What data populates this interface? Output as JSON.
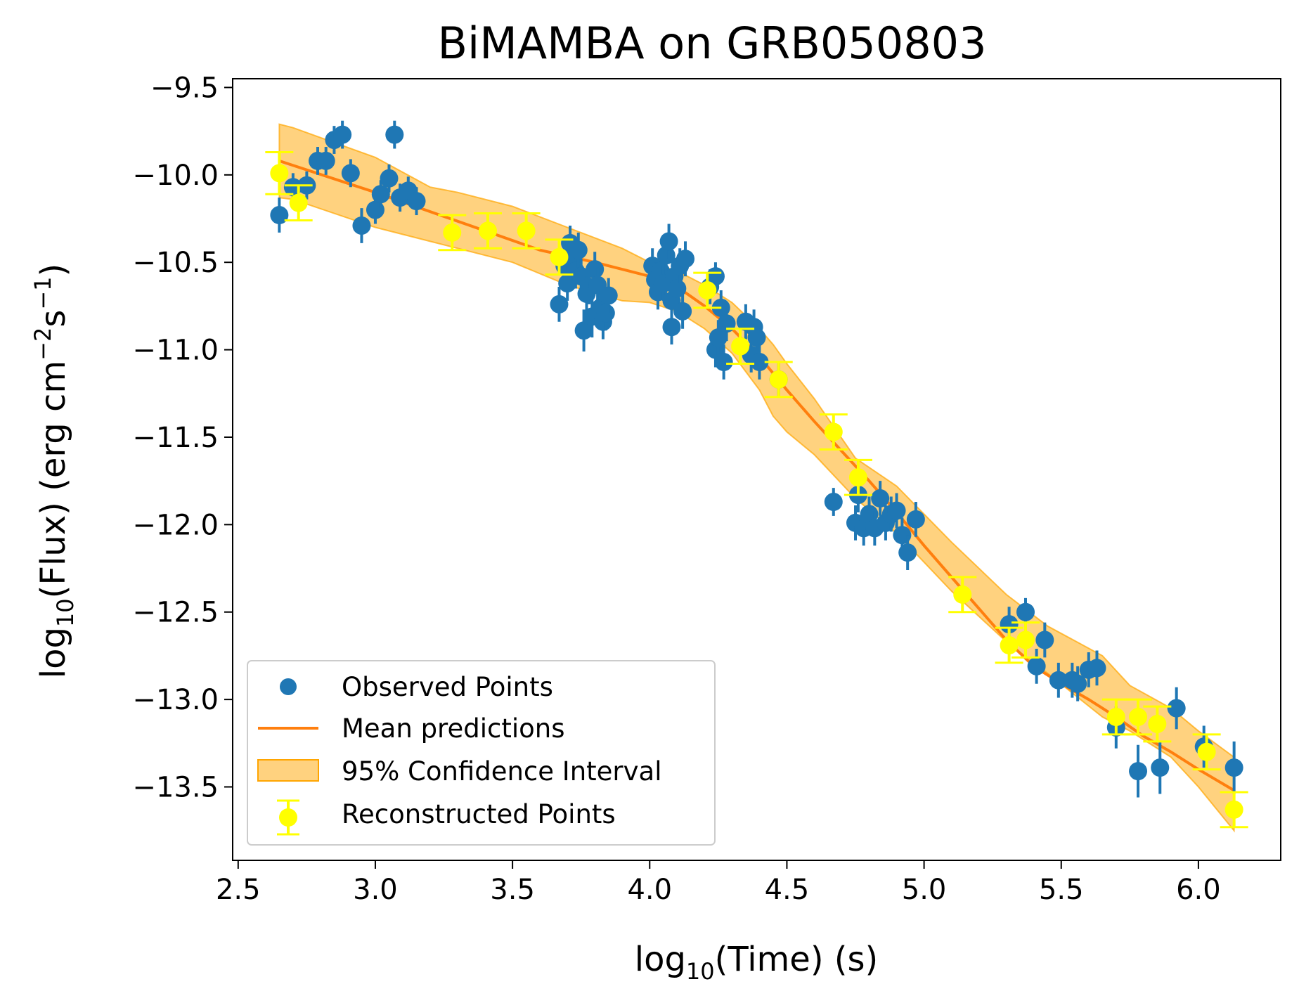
{
  "chart_data": {
    "type": "scatter",
    "title": "BiMAMBA on GRB050803",
    "xlabel_pre": "log",
    "xlabel_sub": "10",
    "xlabel_post": "(Time) (s)",
    "ylabel_pre": "log",
    "ylabel_sub": "10",
    "ylabel_post": "(Flux) (erg cm",
    "ylabel_exp1": "−2",
    "ylabel_mid": "s",
    "ylabel_exp2": "−1",
    "ylabel_end": ")",
    "xlim": [
      2.48,
      6.3
    ],
    "ylim": [
      -13.92,
      -9.45
    ],
    "xticks": [
      2.5,
      3.0,
      3.5,
      4.0,
      4.5,
      5.0,
      5.5,
      6.0
    ],
    "xtick_labels": [
      "2.5",
      "3.0",
      "3.5",
      "4.0",
      "4.5",
      "5.0",
      "5.5",
      "6.0"
    ],
    "yticks": [
      -9.5,
      -10.0,
      -10.5,
      -11.0,
      -11.5,
      -12.0,
      -12.5,
      -13.0,
      -13.5
    ],
    "ytick_labels": [
      "−9.5",
      "−10.0",
      "−10.5",
      "−11.0",
      "−11.5",
      "−12.0",
      "−12.5",
      "−13.0",
      "−13.5"
    ],
    "colors": {
      "observed": "#1f77b4",
      "mean": "#ff7f0e",
      "band_fill": "#ffa500",
      "band_opacity": 0.5,
      "reconstructed": "#ffff00"
    },
    "legend": {
      "position": "lower-left",
      "entries": [
        "Observed Points",
        "Mean predictions",
        "95% Confidence Interval",
        "Reconstructed Points"
      ]
    },
    "series": [
      {
        "name": "Observed Points",
        "points": [
          [
            2.65,
            -10.23,
            0.1
          ],
          [
            2.7,
            -10.07,
            0.08
          ],
          [
            2.75,
            -10.06,
            0.08
          ],
          [
            2.79,
            -9.92,
            0.08
          ],
          [
            2.82,
            -9.92,
            0.08
          ],
          [
            2.85,
            -9.8,
            0.08
          ],
          [
            2.88,
            -9.77,
            0.08
          ],
          [
            2.91,
            -9.99,
            0.08
          ],
          [
            2.95,
            -10.29,
            0.1
          ],
          [
            3.0,
            -10.2,
            0.08
          ],
          [
            3.02,
            -10.11,
            0.08
          ],
          [
            3.05,
            -10.02,
            0.08
          ],
          [
            3.07,
            -9.77,
            0.08
          ],
          [
            3.09,
            -10.13,
            0.08
          ],
          [
            3.12,
            -10.09,
            0.08
          ],
          [
            3.15,
            -10.15,
            0.08
          ],
          [
            3.67,
            -10.74,
            0.1
          ],
          [
            3.69,
            -10.52,
            0.1
          ],
          [
            3.7,
            -10.62,
            0.1
          ],
          [
            3.71,
            -10.39,
            0.1
          ],
          [
            3.72,
            -10.47,
            0.1
          ],
          [
            3.73,
            -10.55,
            0.1
          ],
          [
            3.74,
            -10.43,
            0.1
          ],
          [
            3.75,
            -10.58,
            0.1
          ],
          [
            3.76,
            -10.89,
            0.12
          ],
          [
            3.77,
            -10.68,
            0.1
          ],
          [
            3.78,
            -10.64,
            0.1
          ],
          [
            3.79,
            -10.81,
            0.12
          ],
          [
            3.8,
            -10.54,
            0.1
          ],
          [
            3.81,
            -10.63,
            0.1
          ],
          [
            3.82,
            -10.76,
            0.1
          ],
          [
            3.83,
            -10.84,
            0.1
          ],
          [
            3.84,
            -10.79,
            0.1
          ],
          [
            3.85,
            -10.69,
            0.1
          ],
          [
            4.01,
            -10.52,
            0.1
          ],
          [
            4.02,
            -10.6,
            0.1
          ],
          [
            4.03,
            -10.67,
            0.1
          ],
          [
            4.04,
            -10.55,
            0.1
          ],
          [
            4.05,
            -10.62,
            0.1
          ],
          [
            4.06,
            -10.46,
            0.1
          ],
          [
            4.07,
            -10.38,
            0.1
          ],
          [
            4.08,
            -10.72,
            0.1
          ],
          [
            4.08,
            -10.87,
            0.1
          ],
          [
            4.09,
            -10.58,
            0.1
          ],
          [
            4.1,
            -10.65,
            0.1
          ],
          [
            4.11,
            -10.52,
            0.1
          ],
          [
            4.12,
            -10.78,
            0.1
          ],
          [
            4.13,
            -10.48,
            0.1
          ],
          [
            4.22,
            -10.64,
            0.1
          ],
          [
            4.24,
            -10.58,
            0.08
          ],
          [
            4.24,
            -11.0,
            0.1
          ],
          [
            4.25,
            -10.93,
            0.1
          ],
          [
            4.26,
            -10.76,
            0.1
          ],
          [
            4.27,
            -11.07,
            0.1
          ],
          [
            4.28,
            -10.85,
            0.1
          ],
          [
            4.35,
            -10.84,
            0.1
          ],
          [
            4.37,
            -11.03,
            0.1
          ],
          [
            4.38,
            -10.87,
            0.1
          ],
          [
            4.39,
            -10.93,
            0.1
          ],
          [
            4.4,
            -11.07,
            0.1
          ],
          [
            4.47,
            -11.17,
            0.1
          ],
          [
            4.67,
            -11.87,
            0.08
          ],
          [
            4.75,
            -11.99,
            0.1
          ],
          [
            4.76,
            -11.83,
            0.1
          ],
          [
            4.78,
            -12.02,
            0.1
          ],
          [
            4.8,
            -11.94,
            0.1
          ],
          [
            4.82,
            -12.02,
            0.1
          ],
          [
            4.84,
            -11.85,
            0.1
          ],
          [
            4.86,
            -11.99,
            0.1
          ],
          [
            4.88,
            -11.94,
            0.1
          ],
          [
            4.9,
            -11.92,
            0.1
          ],
          [
            4.92,
            -12.06,
            0.1
          ],
          [
            4.94,
            -12.16,
            0.1
          ],
          [
            4.97,
            -11.97,
            0.1
          ],
          [
            5.31,
            -12.57,
            0.1
          ],
          [
            5.37,
            -12.5,
            0.08
          ],
          [
            5.41,
            -12.81,
            0.1
          ],
          [
            5.44,
            -12.66,
            0.1
          ],
          [
            5.49,
            -12.89,
            0.1
          ],
          [
            5.54,
            -12.89,
            0.1
          ],
          [
            5.56,
            -12.91,
            0.1
          ],
          [
            5.6,
            -12.83,
            0.1
          ],
          [
            5.63,
            -12.82,
            0.1
          ],
          [
            5.7,
            -13.16,
            0.12
          ],
          [
            5.78,
            -13.41,
            0.15
          ],
          [
            5.86,
            -13.39,
            0.15
          ],
          [
            5.92,
            -13.05,
            0.12
          ],
          [
            6.02,
            -13.27,
            0.12
          ],
          [
            6.13,
            -13.39,
            0.15
          ]
        ]
      },
      {
        "name": "Reconstructed Points",
        "points": [
          [
            2.65,
            -9.99,
            0.12
          ],
          [
            2.72,
            -10.16,
            0.1
          ],
          [
            3.28,
            -10.33,
            0.1
          ],
          [
            3.41,
            -10.32,
            0.1
          ],
          [
            3.55,
            -10.32,
            0.1
          ],
          [
            3.67,
            -10.47,
            0.1
          ],
          [
            4.21,
            -10.66,
            0.1
          ],
          [
            4.33,
            -10.98,
            0.1
          ],
          [
            4.47,
            -11.17,
            0.1
          ],
          [
            4.67,
            -11.47,
            0.1
          ],
          [
            4.76,
            -11.73,
            0.1
          ],
          [
            5.14,
            -12.4,
            0.1
          ],
          [
            5.31,
            -12.69,
            0.1
          ],
          [
            5.37,
            -12.66,
            0.1
          ],
          [
            5.7,
            -13.1,
            0.1
          ],
          [
            5.78,
            -13.1,
            0.1
          ],
          [
            5.85,
            -13.14,
            0.1
          ],
          [
            6.03,
            -13.3,
            0.1
          ],
          [
            6.13,
            -13.63,
            0.1
          ]
        ]
      }
    ],
    "mean_prediction": {
      "name": "Mean predictions",
      "x": [
        2.65,
        3.0,
        3.2,
        3.4,
        3.6,
        3.8,
        4.0,
        4.1,
        4.2,
        4.3,
        4.4,
        4.5,
        4.6,
        4.7,
        4.8,
        4.9,
        5.0,
        5.1,
        5.2,
        5.3,
        5.4,
        5.5,
        5.6,
        5.7,
        5.8,
        5.9,
        6.0,
        6.13
      ],
      "y": [
        -9.92,
        -10.1,
        -10.21,
        -10.32,
        -10.43,
        -10.5,
        -10.58,
        -10.64,
        -10.75,
        -10.88,
        -11.04,
        -11.23,
        -11.41,
        -11.58,
        -11.75,
        -11.93,
        -12.12,
        -12.3,
        -12.48,
        -12.66,
        -12.81,
        -12.91,
        -13.0,
        -13.1,
        -13.21,
        -13.3,
        -13.4,
        -13.52
      ]
    },
    "confidence_interval": {
      "name": "95% Confidence Interval",
      "x": [
        2.65,
        2.7,
        3.0,
        3.2,
        3.3,
        3.5,
        3.7,
        3.9,
        4.0,
        4.1,
        4.2,
        4.3,
        4.4,
        4.45,
        4.5,
        4.6,
        4.75,
        4.9,
        5.1,
        5.3,
        5.45,
        5.65,
        5.75,
        5.9,
        6.0,
        6.13
      ],
      "upper": [
        -9.71,
        -9.73,
        -9.9,
        -10.07,
        -10.1,
        -10.18,
        -10.3,
        -10.42,
        -10.5,
        -10.55,
        -10.63,
        -10.73,
        -10.88,
        -10.97,
        -11.08,
        -11.28,
        -11.62,
        -11.78,
        -12.1,
        -12.4,
        -12.58,
        -12.75,
        -12.92,
        -13.05,
        -13.18,
        -13.33
      ],
      "lower": [
        -10.13,
        -10.14,
        -10.3,
        -10.38,
        -10.42,
        -10.5,
        -10.63,
        -10.72,
        -10.73,
        -10.78,
        -10.88,
        -11.02,
        -11.23,
        -11.38,
        -11.47,
        -11.6,
        -11.85,
        -12.05,
        -12.38,
        -12.67,
        -12.85,
        -13.1,
        -13.18,
        -13.33,
        -13.5,
        -13.75
      ]
    }
  }
}
